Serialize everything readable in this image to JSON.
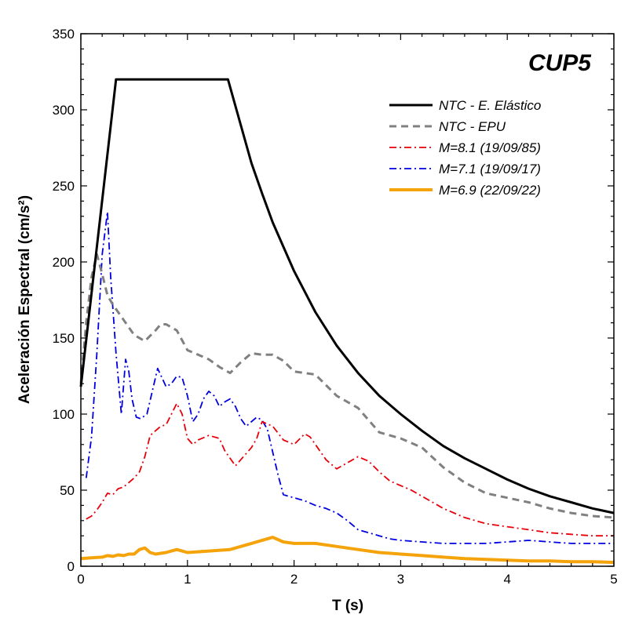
{
  "chart_data": {
    "type": "line",
    "title": "CUP5",
    "xlabel": "T (s)",
    "ylabel": "Aceleración Espectral (cm/s²)",
    "xlim": [
      0,
      5
    ],
    "ylim": [
      0,
      350
    ],
    "x_ticks": [
      "0",
      "1",
      "2",
      "3",
      "4",
      "5"
    ],
    "y_ticks": [
      "0",
      "50",
      "100",
      "150",
      "200",
      "250",
      "300",
      "350"
    ],
    "grid": false,
    "legend_position": "top-right",
    "series": [
      {
        "name": "NTC - E. Elástico",
        "color": "#000000",
        "style": "solid",
        "x": [
          0,
          0.33,
          1.38,
          1.5,
          1.6,
          1.7,
          1.8,
          1.9,
          2.0,
          2.2,
          2.4,
          2.6,
          2.8,
          3.0,
          3.2,
          3.4,
          3.6,
          3.8,
          4.0,
          4.2,
          4.4,
          4.6,
          4.8,
          5.0
        ],
        "y": [
          118,
          320,
          320,
          290,
          265,
          245,
          226,
          210,
          194,
          167,
          145,
          127,
          112,
          100,
          89,
          79,
          71,
          64,
          57,
          51,
          46,
          42,
          38,
          35
        ]
      },
      {
        "name": "NTC - EPU",
        "color": "#808080",
        "style": "dashed",
        "x": [
          0,
          0.05,
          0.1,
          0.15,
          0.2,
          0.25,
          0.3,
          0.4,
          0.5,
          0.6,
          0.7,
          0.75,
          0.8,
          0.9,
          1.0,
          1.1,
          1.2,
          1.3,
          1.4,
          1.5,
          1.6,
          1.7,
          1.8,
          1.9,
          2.0,
          2.2,
          2.4,
          2.6,
          2.8,
          3.0,
          3.2,
          3.4,
          3.6,
          3.8,
          4.0,
          4.2,
          4.4,
          4.6,
          4.8,
          5.0
        ],
        "y": [
          120,
          160,
          190,
          205,
          192,
          178,
          172,
          162,
          152,
          148,
          155,
          159,
          159,
          155,
          142,
          139,
          136,
          131,
          127,
          134,
          140,
          139,
          139,
          135,
          128,
          126,
          112,
          104,
          88,
          84,
          78,
          65,
          55,
          48,
          45,
          42,
          38,
          35,
          33,
          32
        ]
      },
      {
        "name": "M=8.1 (19/09/85)",
        "color": "#e8000b",
        "style": "dash-dot",
        "x": [
          0.05,
          0.1,
          0.15,
          0.2,
          0.25,
          0.3,
          0.35,
          0.4,
          0.45,
          0.5,
          0.55,
          0.6,
          0.65,
          0.7,
          0.75,
          0.8,
          0.85,
          0.9,
          0.95,
          1.0,
          1.05,
          1.1,
          1.2,
          1.3,
          1.35,
          1.45,
          1.5,
          1.6,
          1.65,
          1.7,
          1.8,
          1.9,
          2.0,
          2.1,
          2.15,
          2.2,
          2.3,
          2.4,
          2.5,
          2.6,
          2.7,
          2.8,
          2.9,
          3.0,
          3.1,
          3.2,
          3.3,
          3.4,
          3.6,
          3.8,
          4.0,
          4.2,
          4.4,
          4.6,
          4.8,
          5.0
        ],
        "y": [
          31,
          33,
          37,
          42,
          48,
          47,
          51,
          52,
          55,
          58,
          62,
          72,
          86,
          89,
          92,
          93,
          100,
          107,
          100,
          84,
          80,
          83,
          86,
          84,
          76,
          66,
          70,
          78,
          84,
          95,
          92,
          83,
          80,
          87,
          85,
          80,
          70,
          64,
          68,
          72,
          69,
          62,
          56,
          53,
          50,
          46,
          42,
          38,
          32,
          28,
          26,
          24,
          22,
          21,
          20,
          20
        ]
      },
      {
        "name": "M=7.1 (19/09/17)",
        "color": "#0000e0",
        "style": "dash-dot",
        "x": [
          0.05,
          0.1,
          0.15,
          0.2,
          0.25,
          0.28,
          0.33,
          0.38,
          0.42,
          0.45,
          0.48,
          0.52,
          0.56,
          0.62,
          0.67,
          0.72,
          0.76,
          0.8,
          0.85,
          0.9,
          0.95,
          1.0,
          1.05,
          1.1,
          1.15,
          1.2,
          1.25,
          1.3,
          1.35,
          1.4,
          1.45,
          1.5,
          1.55,
          1.6,
          1.65,
          1.7,
          1.75,
          1.8,
          1.85,
          1.9,
          1.95,
          2.0,
          2.1,
          2.2,
          2.3,
          2.4,
          2.5,
          2.6,
          2.7,
          2.8,
          2.9,
          3.0,
          3.2,
          3.4,
          3.6,
          3.8,
          4.0,
          4.2,
          4.4,
          4.6,
          4.8,
          5.0
        ],
        "y": [
          58,
          85,
          140,
          205,
          233,
          190,
          140,
          100,
          136,
          128,
          110,
          98,
          97,
          100,
          115,
          130,
          124,
          118,
          120,
          125,
          124,
          112,
          95,
          100,
          110,
          115,
          112,
          105,
          108,
          110,
          105,
          97,
          92,
          95,
          98,
          96,
          90,
          75,
          60,
          47,
          46,
          45,
          43,
          40,
          38,
          35,
          30,
          24,
          22,
          20,
          18,
          17,
          16,
          15,
          15,
          15,
          16,
          17,
          16,
          15,
          15,
          15
        ]
      },
      {
        "name": "M=6.9 (22/09/22)",
        "color": "#f5a30a",
        "style": "solid-thick",
        "x": [
          0,
          0.1,
          0.2,
          0.25,
          0.3,
          0.35,
          0.4,
          0.45,
          0.5,
          0.55,
          0.6,
          0.65,
          0.7,
          0.75,
          0.8,
          0.85,
          0.9,
          0.95,
          1.0,
          1.2,
          1.4,
          1.6,
          1.8,
          1.9,
          2.0,
          2.2,
          2.4,
          2.6,
          2.8,
          3.0,
          3.2,
          3.4,
          3.6,
          3.8,
          4.0,
          4.2,
          4.4,
          4.6,
          4.8,
          5.0
        ],
        "y": [
          5,
          5.5,
          6,
          7,
          6.5,
          7.5,
          7,
          8,
          8,
          11,
          12,
          9,
          8,
          8.5,
          9,
          10,
          11,
          10,
          9,
          10,
          11,
          15,
          19,
          16,
          15,
          15,
          13,
          11,
          9,
          8,
          7,
          6,
          5,
          4.5,
          4,
          3.5,
          3.5,
          3,
          3,
          2.5
        ]
      }
    ]
  }
}
